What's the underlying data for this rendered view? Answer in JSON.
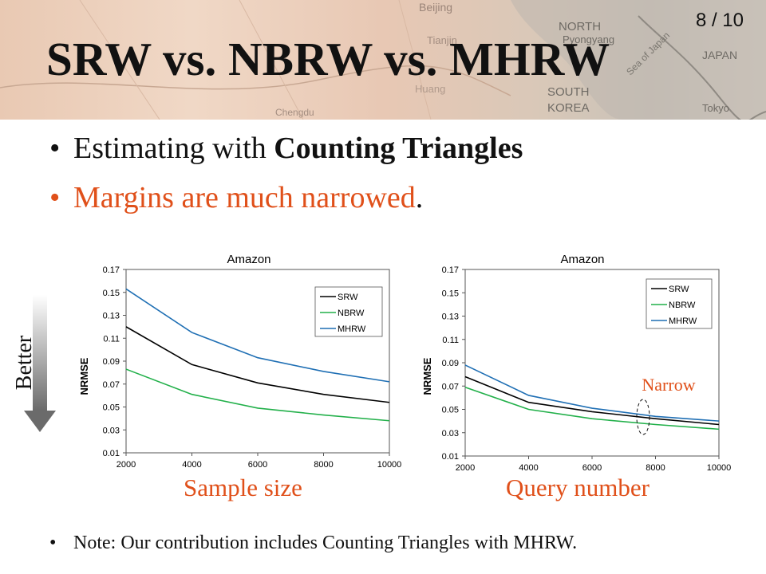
{
  "slide": {
    "title": "SRW vs. NBRW vs. MHRW",
    "page_number": "8 / 10",
    "header_map_labels": [
      "Beijing",
      "Tianjin",
      "NORTH",
      "Pyongyang",
      "SOUTH",
      "KOREA",
      "JAPAN",
      "Sea of Japan",
      "Tokyo",
      "Huang",
      "Chengdu"
    ]
  },
  "bullets": [
    {
      "pre": "Estimating with ",
      "bold": "Counting Triangles",
      "color": "#111111"
    },
    {
      "text": "Margins are much narrowed",
      "suffix": ".",
      "color": "#e0501a"
    }
  ],
  "side_label": "Better",
  "annotation": "Narrow",
  "captions": {
    "left": "Sample size",
    "right": "Query number"
  },
  "note": "Note: Our contribution includes Counting Triangles with MHRW.",
  "colors": {
    "accent": "#e0501a",
    "SRW": "#000000",
    "NBRW": "#22b04a",
    "MHRW": "#1f6fb4"
  },
  "chart_data": [
    {
      "type": "line",
      "title": "Amazon",
      "xlabel": "",
      "ylabel": "NRMSE",
      "x": [
        2000,
        4000,
        6000,
        8000,
        10000
      ],
      "xlim": [
        2000,
        10000
      ],
      "xticks": [
        "2000",
        "4000",
        "6000",
        "8000",
        "10000"
      ],
      "ylim": [
        0.01,
        0.17
      ],
      "yticks": [
        "0.01",
        "0.03",
        "0.05",
        "0.07",
        "0.09",
        "0.11",
        "0.13",
        "0.15",
        "0.17"
      ],
      "legend": "top-right",
      "grid": false,
      "series": [
        {
          "name": "SRW",
          "values": [
            0.12,
            0.087,
            0.071,
            0.061,
            0.054
          ]
        },
        {
          "name": "NBRW",
          "values": [
            0.083,
            0.061,
            0.049,
            0.043,
            0.038
          ]
        },
        {
          "name": "MHRW",
          "values": [
            0.153,
            0.115,
            0.093,
            0.081,
            0.072
          ]
        }
      ]
    },
    {
      "type": "line",
      "title": "Amazon",
      "xlabel": "",
      "ylabel": "NRMSE",
      "x": [
        2000,
        4000,
        6000,
        8000,
        10000
      ],
      "xlim": [
        2000,
        10000
      ],
      "xticks": [
        "2000",
        "4000",
        "6000",
        "8000",
        "10000"
      ],
      "ylim": [
        0.01,
        0.17
      ],
      "yticks": [
        "0.01",
        "0.03",
        "0.05",
        "0.07",
        "0.09",
        "0.11",
        "0.13",
        "0.15",
        "0.17"
      ],
      "legend": "top-right",
      "grid": false,
      "series": [
        {
          "name": "SRW",
          "values": [
            0.078,
            0.056,
            0.048,
            0.042,
            0.037
          ]
        },
        {
          "name": "NBRW",
          "values": [
            0.069,
            0.05,
            0.042,
            0.037,
            0.033
          ]
        },
        {
          "name": "MHRW",
          "values": [
            0.088,
            0.062,
            0.051,
            0.044,
            0.04
          ]
        }
      ]
    }
  ]
}
